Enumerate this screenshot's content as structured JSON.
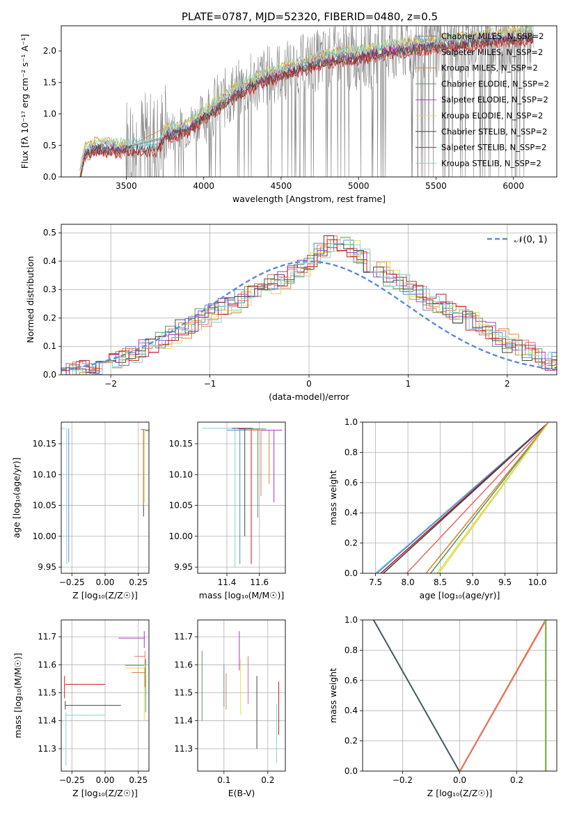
{
  "title": "PLATE=0787, MJD=52320, FIBERID=0480, z=0.5",
  "colors": {
    "chabrier_miles": "#5b8bd6",
    "salpeter_miles": "#e9706a",
    "kroupa_miles": "#e0823a",
    "chabrier_elodie": "#5a9a63",
    "salpeter_elodie": "#a83ac1",
    "kroupa_elodie": "#dede53",
    "chabrier_stelib": "#444444",
    "salpeter_stelib": "#c11f1f",
    "kroupa_stelib": "#7fd4d9",
    "data": "#808080",
    "normal": "#5b8bd6"
  },
  "chart_data": [
    {
      "id": "spectrum",
      "type": "line",
      "xlabel": "wavelength [Angstrom, rest frame]",
      "ylabel": "Flux [fλ 10⁻¹⁷ erg cm⁻² s⁻¹ A⁻¹]",
      "xlim": [
        3080,
        6280
      ],
      "ylim": [
        0,
        2.4
      ],
      "xticks": [
        "3500",
        "4000",
        "4500",
        "5000",
        "5500",
        "6000"
      ],
      "yticks": [
        "0.0",
        "0.5",
        "1.0",
        "1.5",
        "2.0"
      ],
      "legend_position": "top-right",
      "legend": [
        "Chabrier MILES, N_SSP=2",
        "Salpeter MILES, N_SSP=2",
        "Kroupa MILES, N_SSP=2",
        "Chabrier ELODIE, N_SSP=2",
        "Salpeter ELODIE, N_SSP=2",
        "Kroupa ELODIE, N_SSP=2",
        "Chabrier STELIB, N_SSP=2",
        "Salpeter STELIB, N_SSP=2",
        "Kroupa STELIB, N_SSP=2"
      ],
      "data_range": [
        3200,
        6130
      ],
      "model_shape": [
        [
          3200,
          0.0
        ],
        [
          3230,
          0.4
        ],
        [
          3300,
          0.5
        ],
        [
          3500,
          0.47
        ],
        [
          3700,
          0.5
        ],
        [
          3750,
          0.7
        ],
        [
          3900,
          0.8
        ],
        [
          4000,
          1.0
        ],
        [
          4200,
          1.35
        ],
        [
          4400,
          1.6
        ],
        [
          4600,
          1.75
        ],
        [
          4800,
          1.9
        ],
        [
          5000,
          1.95
        ],
        [
          5200,
          2.05
        ],
        [
          5400,
          2.1
        ],
        [
          5600,
          2.15
        ],
        [
          5800,
          2.2
        ],
        [
          6000,
          2.25
        ],
        [
          6130,
          2.25
        ]
      ]
    },
    {
      "id": "residuals",
      "type": "histogram",
      "xlabel": "(data-model)/error",
      "ylabel": "Normed distribution",
      "xlim": [
        -2.5,
        2.5
      ],
      "ylim": [
        0,
        0.53
      ],
      "xticks": [
        "−2",
        "−1",
        "0",
        "1",
        "2"
      ],
      "yticks": [
        "0.0",
        "0.1",
        "0.2",
        "0.3",
        "0.4",
        "0.5"
      ],
      "legend": [
        "𝒩(0, 1)"
      ],
      "legend_position": "top-right",
      "bin_width": 0.1,
      "envelope": [
        0.01,
        0.01,
        0.02,
        0.03,
        0.05,
        0.05,
        0.06,
        0.07,
        0.09,
        0.11,
        0.12,
        0.14,
        0.16,
        0.18,
        0.2,
        0.22,
        0.24,
        0.25,
        0.27,
        0.3,
        0.3,
        0.32,
        0.33,
        0.35,
        0.37,
        0.4,
        0.43,
        0.46,
        0.47,
        0.45,
        0.42,
        0.39,
        0.37,
        0.34,
        0.32,
        0.3,
        0.28,
        0.26,
        0.25,
        0.23,
        0.21,
        0.19,
        0.17,
        0.15,
        0.13,
        0.11,
        0.09,
        0.08,
        0.06,
        0.05
      ]
    },
    {
      "id": "age-vs-Z",
      "type": "scatter",
      "xlabel": "Z [log₁₀(Z/Z☉)]",
      "ylabel": "age  [log₁₀(age/yr)]",
      "xlim": [
        -0.33,
        0.33
      ],
      "ylim": [
        9.94,
        10.185
      ],
      "xticks": [
        "−0.25",
        "0.00",
        "0.25"
      ],
      "yticks": [
        "9.95",
        "10.00",
        "10.05",
        "10.10",
        "10.15"
      ],
      "points": [
        {
          "Z": -0.3,
          "age": 10.175,
          "xerr": [
            0.0,
            0.42
          ],
          "yerr": [
            0.22,
            0.0
          ]
        },
        {
          "Z": 0.3,
          "age": 10.172,
          "xerr": [
            0.12,
            0.0
          ],
          "yerr": [
            0.14,
            0.0
          ]
        },
        {
          "Z": 0.3,
          "age": 10.17,
          "xerr": [
            0.1,
            0.0
          ],
          "yerr": [
            0.115,
            0.0
          ]
        }
      ]
    },
    {
      "id": "age-vs-mass",
      "type": "scatter",
      "xlabel": "mass [log₁₀(M/M☉)]",
      "ylabel": "",
      "xlim": [
        11.22,
        11.76
      ],
      "ylim": [
        9.94,
        10.185
      ],
      "xticks": [
        "11.4",
        "11.6"
      ],
      "yticks": [
        "9.95",
        "10.00",
        "10.05",
        "10.10",
        "10.15"
      ],
      "points": [
        {
          "mass": 11.45,
          "age": 10.175,
          "low": 9.95
        },
        {
          "mass": 11.48,
          "age": 10.172,
          "low": 9.955
        },
        {
          "mass": 11.51,
          "age": 10.175,
          "low": 10.0
        },
        {
          "mass": 11.55,
          "age": 10.174,
          "low": 9.955
        },
        {
          "mass": 11.59,
          "age": 10.174,
          "low": 10.03
        },
        {
          "mass": 11.61,
          "age": 10.172,
          "low": 10.065
        },
        {
          "mass": 11.66,
          "age": 10.172,
          "low": 10.085
        },
        {
          "mass": 11.69,
          "age": 10.172,
          "low": 10.055
        }
      ]
    },
    {
      "id": "mass-weight-vs-age",
      "type": "line",
      "xlabel": "age  [log₁₀(age/yr)]",
      "ylabel": "mass weight",
      "xlim": [
        7.3,
        10.3
      ],
      "ylim": [
        0,
        1
      ],
      "xticks": [
        "7.5",
        "8.0",
        "8.5",
        "9.0",
        "9.5",
        "10.0"
      ],
      "yticks": [
        "0.0",
        "0.2",
        "0.4",
        "0.6",
        "0.8",
        "1.0"
      ],
      "series": [
        {
          "color": "kroupa_stelib",
          "x0": 7.5
        },
        {
          "color": "chabrier_miles",
          "x0": 7.52
        },
        {
          "color": "salpeter_stelib",
          "x0": 7.58
        },
        {
          "color": "chabrier_stelib",
          "x0": 7.62
        },
        {
          "color": "salpeter_miles",
          "x0": 7.98
        },
        {
          "color": "kroupa_miles",
          "x0": 8.28
        },
        {
          "color": "chabrier_elodie",
          "x0": 8.35
        },
        {
          "color": "kroupa_elodie",
          "x0": 8.45
        },
        {
          "color": "kroupa_elodie",
          "x0": 8.48
        }
      ],
      "x1": 10.18
    },
    {
      "id": "mass-vs-Z",
      "type": "scatter",
      "xlabel": "Z [log₁₀(Z/Z☉)]",
      "ylabel": "mass [log₁₀(M/M☉)]",
      "xlim": [
        -0.33,
        0.33
      ],
      "ylim": [
        11.22,
        11.76
      ],
      "xticks": [
        "−0.25",
        "0.00",
        "0.25"
      ],
      "yticks": [
        "11.3",
        "11.4",
        "11.5",
        "11.6",
        "11.7"
      ],
      "points": [
        {
          "Z": -0.3,
          "mass": 11.53,
          "xr": 0.3,
          "low": 11.48,
          "high": 11.56,
          "color": "salpeter_stelib"
        },
        {
          "Z": -0.3,
          "mass": 11.455,
          "xr": 0.42,
          "low": 11.44,
          "high": 11.47,
          "color": "chabrier_stelib"
        },
        {
          "Z": -0.3,
          "mass": 11.42,
          "xr": 0.3,
          "low": 11.24,
          "high": 11.43,
          "color": "kroupa_stelib"
        },
        {
          "Z": 0.3,
          "mass": 11.695,
          "xl": 0.2,
          "low": 11.66,
          "high": 11.72,
          "color": "salpeter_elodie"
        },
        {
          "Z": 0.3,
          "mass": 11.63,
          "xl": 0.08,
          "low": 11.6,
          "high": 11.65,
          "color": "salpeter_miles"
        },
        {
          "Z": 0.3,
          "mass": 11.598,
          "xl": 0.15,
          "low": 11.43,
          "high": 11.62,
          "color": "chabrier_elodie"
        },
        {
          "Z": 0.3,
          "mass": 11.588,
          "xl": 0.15,
          "low": 11.4,
          "high": 11.6,
          "color": "kroupa_elodie"
        },
        {
          "Z": 0.3,
          "mass": 11.572,
          "xl": 0.1,
          "low": 11.52,
          "high": 11.59,
          "color": "kroupa_miles"
        }
      ]
    },
    {
      "id": "mass-vs-ebv",
      "type": "scatter",
      "xlabel": "E(B-V)",
      "ylabel": "",
      "xlim": [
        0.04,
        0.24
      ],
      "ylim": [
        11.22,
        11.76
      ],
      "xticks": [
        "0.1",
        "0.2"
      ],
      "yticks": [
        "11.3",
        "11.4",
        "11.5",
        "11.6",
        "11.7"
      ],
      "segments": [
        {
          "ebv": 0.05,
          "low": 11.4,
          "high": 11.65,
          "color": "chabrier_elodie"
        },
        {
          "ebv": 0.1,
          "low": 11.45,
          "high": 11.6,
          "color": "chabrier_miles"
        },
        {
          "ebv": 0.105,
          "low": 11.44,
          "high": 11.57,
          "color": "kroupa_miles"
        },
        {
          "ebv": 0.135,
          "low": 11.58,
          "high": 11.72,
          "color": "salpeter_elodie"
        },
        {
          "ebv": 0.138,
          "low": 11.42,
          "high": 11.62,
          "color": "kroupa_elodie"
        },
        {
          "ebv": 0.155,
          "low": 11.46,
          "high": 11.63,
          "color": "salpeter_miles"
        },
        {
          "ebv": 0.175,
          "low": 11.3,
          "high": 11.56,
          "color": "chabrier_stelib"
        },
        {
          "ebv": 0.22,
          "low": 11.25,
          "high": 11.46,
          "color": "kroupa_stelib"
        },
        {
          "ebv": 0.225,
          "low": 11.35,
          "high": 11.54,
          "color": "salpeter_stelib"
        }
      ]
    },
    {
      "id": "mass-weight-vs-Z",
      "type": "line",
      "xlabel": "Z [log₁₀(Z/Z☉)]",
      "ylabel": "mass weight",
      "xlim": [
        -0.34,
        0.34
      ],
      "ylim": [
        0,
        1
      ],
      "xticks": [
        "−0.2",
        "0.0",
        "0.2"
      ],
      "yticks": [
        "0.0",
        "0.2",
        "0.4",
        "0.6",
        "0.8",
        "1.0"
      ],
      "series": [
        {
          "color": "kroupa_stelib",
          "points": [
            [
              -0.3,
              1.0
            ],
            [
              0.0,
              0.0
            ]
          ]
        },
        {
          "color": "chabrier_stelib",
          "points": [
            [
              -0.302,
              1.0
            ],
            [
              -0.002,
              0.0
            ]
          ]
        },
        {
          "color": "kroupa_miles",
          "points": [
            [
              0.0,
              0.0
            ],
            [
              0.3,
              1.0
            ]
          ]
        },
        {
          "color": "salpeter_miles",
          "points": [
            [
              0.002,
              0.0
            ],
            [
              0.3,
              0.99
            ]
          ]
        },
        {
          "color": "kroupa_elodie",
          "points": [
            [
              0.3,
              0.0
            ],
            [
              0.3,
              1.0
            ]
          ]
        },
        {
          "color": "chabrier_elodie",
          "points": [
            [
              0.302,
              0.0
            ],
            [
              0.302,
              1.0
            ]
          ]
        }
      ]
    }
  ]
}
